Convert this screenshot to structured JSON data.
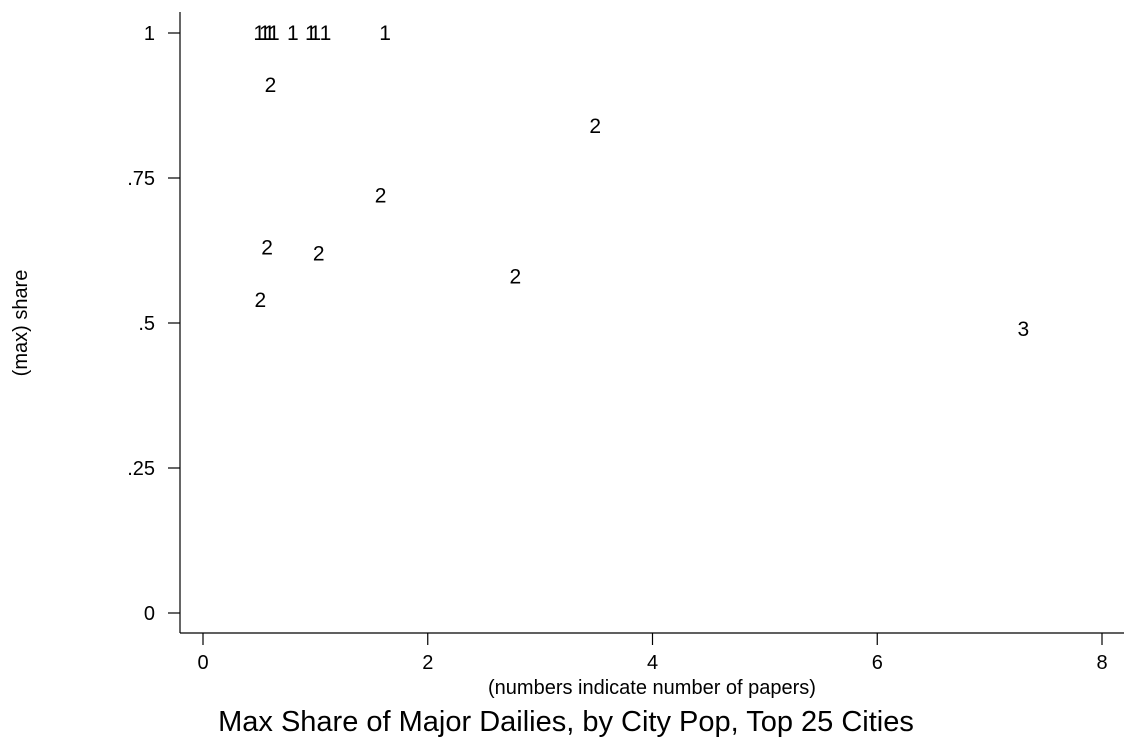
{
  "chart_data": {
    "type": "scatter",
    "title": "Max Share of Major Dailies, by City Pop, Top 25 Cities",
    "xlabel": "(numbers indicate number of papers)",
    "ylabel": "(max) share",
    "xlim": [
      0,
      8
    ],
    "ylim": [
      0,
      1
    ],
    "x_ticks": [
      {
        "value": 0,
        "label": "0"
      },
      {
        "value": 2,
        "label": "2"
      },
      {
        "value": 4,
        "label": "4"
      },
      {
        "value": 6,
        "label": "6"
      },
      {
        "value": 8,
        "label": "8"
      }
    ],
    "y_ticks": [
      {
        "value": 0,
        "label": "0"
      },
      {
        "value": 0.25,
        "label": ".25"
      },
      {
        "value": 0.5,
        "label": ".5"
      },
      {
        "value": 0.75,
        "label": ".75"
      },
      {
        "value": 1,
        "label": "1"
      }
    ],
    "grid": false,
    "marker_style": "number of papers shown as text label",
    "points": [
      {
        "x": 0.5,
        "y": 1.0,
        "label": "1"
      },
      {
        "x": 0.55,
        "y": 1.0,
        "label": "1"
      },
      {
        "x": 0.59,
        "y": 1.0,
        "label": "1"
      },
      {
        "x": 0.63,
        "y": 1.0,
        "label": "1"
      },
      {
        "x": 0.8,
        "y": 1.0,
        "label": "1"
      },
      {
        "x": 0.96,
        "y": 1.0,
        "label": "1"
      },
      {
        "x": 1.0,
        "y": 1.0,
        "label": "1"
      },
      {
        "x": 1.09,
        "y": 1.0,
        "label": "1"
      },
      {
        "x": 1.62,
        "y": 1.0,
        "label": "1"
      },
      {
        "x": 0.6,
        "y": 0.91,
        "label": "2"
      },
      {
        "x": 3.49,
        "y": 0.84,
        "label": "2"
      },
      {
        "x": 1.58,
        "y": 0.72,
        "label": "2"
      },
      {
        "x": 0.57,
        "y": 0.63,
        "label": "2"
      },
      {
        "x": 1.03,
        "y": 0.62,
        "label": "2"
      },
      {
        "x": 2.78,
        "y": 0.58,
        "label": "2"
      },
      {
        "x": 0.51,
        "y": 0.54,
        "label": "2"
      },
      {
        "x": 7.3,
        "y": 0.49,
        "label": "3"
      }
    ]
  }
}
